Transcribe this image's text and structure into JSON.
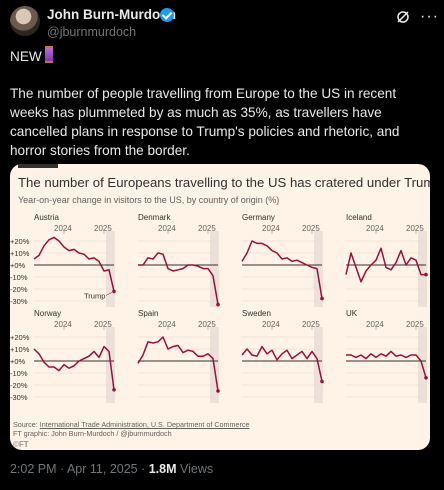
{
  "author": {
    "name": "John Burn-Murdoch",
    "handle": "@jburnmurdoch"
  },
  "tweet": {
    "line1": "NEW",
    "line2": "The number of people travelling from Europe to the US in recent weeks has plummeted by as much as 35%, as travellers have cancelled plans in response to Trump's policies and rhetoric, and horror stories from the border."
  },
  "chart": {
    "title": "The number of Europeans travelling to the US has cratered under Trump",
    "subtitle": "Year-on-year change in visitors to the US, by country of origin (%)",
    "source_prefix": "Source: ",
    "source_link": "International Trade Administration, U.S. Department of Commerce",
    "credit": "FT graphic: John Burn-Murdoch / @jburnmurdoch",
    "ft_mark": "©FT",
    "annotation": "Trump",
    "colors": {
      "line": "#990f3d",
      "zero": "#33302e",
      "grid": "#e6d9ce",
      "shade": "#ebe1d8",
      "card_bg": "#fff2e6"
    }
  },
  "meta": {
    "time": "2:02 PM · Apr 11, 2025 · ",
    "views": "1.8M",
    "views_label": " Views"
  },
  "chart_data": {
    "type": "line",
    "x_labels": [
      "2024",
      "2025"
    ],
    "y_ticks": [
      "+20%",
      "+10%",
      "+0%",
      "-10%",
      "-20%",
      "-30%"
    ],
    "ylim": [
      -35,
      25
    ],
    "series": [
      {
        "name": "Austria",
        "values": [
          5,
          8,
          16,
          21,
          23,
          20,
          15,
          12,
          13,
          10,
          9,
          5,
          6,
          3,
          -5,
          -4,
          -22
        ]
      },
      {
        "name": "Denmark",
        "values": [
          0,
          0,
          6,
          5,
          10,
          9,
          -3,
          -5,
          -4,
          -3,
          0,
          0,
          -1,
          -3,
          -3,
          -9,
          -33
        ]
      },
      {
        "name": "Germany",
        "values": [
          3,
          10,
          20,
          18,
          18,
          16,
          12,
          10,
          5,
          6,
          3,
          4,
          2,
          0,
          -2,
          -3,
          -28
        ]
      },
      {
        "name": "Iceland",
        "values": [
          -8,
          10,
          -2,
          -14,
          -5,
          0,
          4,
          14,
          -2,
          -4,
          2,
          12,
          0,
          6,
          4,
          -8,
          -8
        ]
      },
      {
        "name": "Norway",
        "values": [
          10,
          6,
          -1,
          -5,
          -5,
          -8,
          -3,
          -6,
          -4,
          0,
          2,
          4,
          8,
          3,
          12,
          8,
          -24
        ]
      },
      {
        "name": "Spain",
        "values": [
          -2,
          5,
          16,
          15,
          16,
          20,
          10,
          12,
          13,
          7,
          9,
          8,
          4,
          4,
          6,
          2,
          -25
        ]
      },
      {
        "name": "Sweden",
        "values": [
          5,
          10,
          5,
          4,
          12,
          6,
          9,
          1,
          6,
          9,
          2,
          5,
          8,
          2,
          8,
          2,
          -17
        ]
      },
      {
        "name": "UK",
        "values": [
          5,
          5,
          3,
          5,
          2,
          6,
          3,
          6,
          4,
          8,
          4,
          5,
          3,
          5,
          5,
          0,
          -14
        ]
      }
    ]
  }
}
